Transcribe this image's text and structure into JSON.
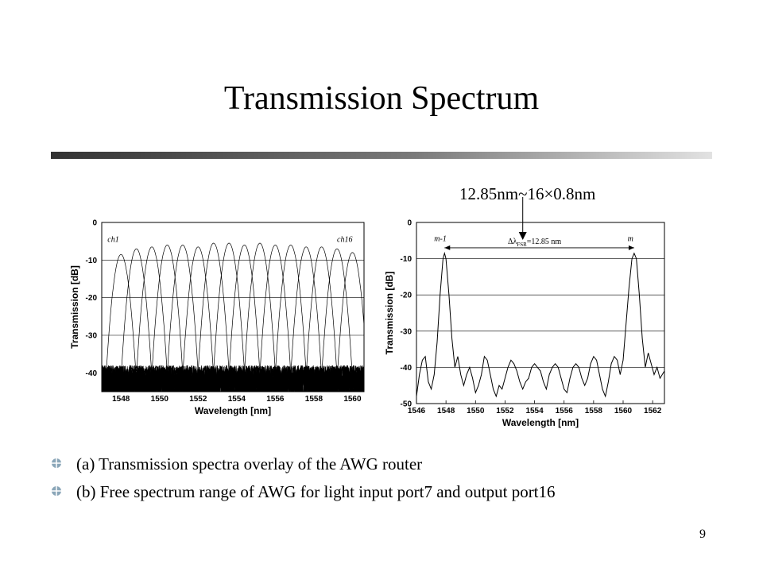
{
  "slide": {
    "title": "Transmission Spectrum",
    "annotation": "12.85nm~16×0.8nm",
    "bullets": [
      "(a) Transmission spectra overlay of the AWG router",
      "(b) Free spectrum range of AWG for light input port7 and output port16"
    ],
    "page_number": "9",
    "colors": {
      "rule_dark": "#3a3a3a",
      "rule_light": "#d6d6d6",
      "bullet": "#8aa6b8",
      "ink": "#000000"
    },
    "icons": {
      "bullet": "cross-diamond-icon"
    }
  },
  "chart_data": [
    {
      "type": "line",
      "id": "a",
      "xlabel": "Wavelength [nm]",
      "ylabel": "Transmission [dB]",
      "xlim": [
        1547.0,
        1560.6
      ],
      "ylim": [
        -45,
        0
      ],
      "xticks": [
        1548,
        1550,
        1552,
        1554,
        1556,
        1558,
        1560
      ],
      "yticks": [
        0,
        -10,
        -20,
        -30,
        -40
      ],
      "grid": "horizontal",
      "labels": [
        {
          "text": "ch1",
          "x": 1547.3,
          "y": -4.5
        },
        {
          "text": "ch16",
          "x": 1559.2,
          "y": -4.5
        }
      ],
      "channel_peaks": [
        {
          "x": 1548.0,
          "y": -8.5
        },
        {
          "x": 1548.8,
          "y": -7.0
        },
        {
          "x": 1549.6,
          "y": -6.5
        },
        {
          "x": 1550.4,
          "y": -6.0
        },
        {
          "x": 1551.2,
          "y": -6.0
        },
        {
          "x": 1552.0,
          "y": -6.5
        },
        {
          "x": 1552.8,
          "y": -5.5
        },
        {
          "x": 1553.6,
          "y": -5.5
        },
        {
          "x": 1554.4,
          "y": -6.0
        },
        {
          "x": 1555.2,
          "y": -5.5
        },
        {
          "x": 1556.0,
          "y": -6.0
        },
        {
          "x": 1556.8,
          "y": -6.0
        },
        {
          "x": 1557.6,
          "y": -6.5
        },
        {
          "x": 1558.4,
          "y": -6.5
        },
        {
          "x": 1559.2,
          "y": -7.0
        },
        {
          "x": 1560.0,
          "y": -8.0
        }
      ],
      "peak_fwhm_nm": 0.45,
      "noise_floor_db": [
        -47,
        -38
      ]
    },
    {
      "type": "line",
      "id": "b",
      "xlabel": "Wavelength [nm]",
      "ylabel": "Transmission [dB]",
      "xlim": [
        1546,
        1562.8
      ],
      "ylim": [
        -50,
        0
      ],
      "xticks": [
        1546,
        1548,
        1550,
        1552,
        1554,
        1556,
        1558,
        1560,
        1562
      ],
      "yticks": [
        0,
        -10,
        -20,
        -30,
        -40,
        -50
      ],
      "grid": "horizontal",
      "labels": [
        {
          "text": "m-1",
          "x": 1547.2,
          "y": -4.5
        },
        {
          "text": "m",
          "x": 1560.3,
          "y": -4.5
        }
      ],
      "fsr_label": "Δλ_FSR=12.85 nm",
      "fsr": {
        "from": 1547.9,
        "to": 1560.75,
        "y": -7
      },
      "peaks": [
        {
          "x": 1547.9,
          "y": -8.5
        },
        {
          "x": 1560.75,
          "y": -8.5
        }
      ],
      "points": [
        [
          1546.0,
          -48
        ],
        [
          1546.2,
          -42
        ],
        [
          1546.4,
          -38
        ],
        [
          1546.6,
          -37
        ],
        [
          1546.8,
          -44
        ],
        [
          1547.0,
          -46
        ],
        [
          1547.2,
          -42
        ],
        [
          1547.4,
          -33
        ],
        [
          1547.6,
          -20
        ],
        [
          1547.8,
          -10
        ],
        [
          1547.9,
          -8.5
        ],
        [
          1548.0,
          -10
        ],
        [
          1548.2,
          -20
        ],
        [
          1548.4,
          -32
        ],
        [
          1548.6,
          -40
        ],
        [
          1548.8,
          -37
        ],
        [
          1549.0,
          -42
        ],
        [
          1549.2,
          -45
        ],
        [
          1549.4,
          -42
        ],
        [
          1549.6,
          -40
        ],
        [
          1549.8,
          -43
        ],
        [
          1550.0,
          -47
        ],
        [
          1550.2,
          -45
        ],
        [
          1550.4,
          -42
        ],
        [
          1550.6,
          -37
        ],
        [
          1550.8,
          -38
        ],
        [
          1551.0,
          -42
        ],
        [
          1551.2,
          -46
        ],
        [
          1551.4,
          -48
        ],
        [
          1551.6,
          -45
        ],
        [
          1551.8,
          -46
        ],
        [
          1552.0,
          -43
        ],
        [
          1552.2,
          -40
        ],
        [
          1552.4,
          -38
        ],
        [
          1552.6,
          -39
        ],
        [
          1552.8,
          -41
        ],
        [
          1553.0,
          -44
        ],
        [
          1553.2,
          -46
        ],
        [
          1553.4,
          -44
        ],
        [
          1553.6,
          -43
        ],
        [
          1553.8,
          -40
        ],
        [
          1554.0,
          -39
        ],
        [
          1554.2,
          -40
        ],
        [
          1554.4,
          -41
        ],
        [
          1554.6,
          -44
        ],
        [
          1554.8,
          -46
        ],
        [
          1555.0,
          -42
        ],
        [
          1555.2,
          -40
        ],
        [
          1555.4,
          -39
        ],
        [
          1555.6,
          -40
        ],
        [
          1555.8,
          -43
        ],
        [
          1556.0,
          -46
        ],
        [
          1556.2,
          -47
        ],
        [
          1556.4,
          -43
        ],
        [
          1556.6,
          -40
        ],
        [
          1556.8,
          -39
        ],
        [
          1557.0,
          -40
        ],
        [
          1557.2,
          -43
        ],
        [
          1557.4,
          -45
        ],
        [
          1557.6,
          -43
        ],
        [
          1557.8,
          -39
        ],
        [
          1558.0,
          -37
        ],
        [
          1558.2,
          -38
        ],
        [
          1558.4,
          -42
        ],
        [
          1558.6,
          -46
        ],
        [
          1558.8,
          -48
        ],
        [
          1559.0,
          -44
        ],
        [
          1559.2,
          -39
        ],
        [
          1559.4,
          -37
        ],
        [
          1559.6,
          -38
        ],
        [
          1559.8,
          -42
        ],
        [
          1560.0,
          -38
        ],
        [
          1560.2,
          -28
        ],
        [
          1560.4,
          -18
        ],
        [
          1560.6,
          -10
        ],
        [
          1560.75,
          -8.5
        ],
        [
          1560.9,
          -10
        ],
        [
          1561.1,
          -20
        ],
        [
          1561.3,
          -32
        ],
        [
          1561.5,
          -40
        ],
        [
          1561.7,
          -36
        ],
        [
          1561.9,
          -39
        ],
        [
          1562.1,
          -42
        ],
        [
          1562.3,
          -40
        ],
        [
          1562.5,
          -43
        ],
        [
          1562.8,
          -41
        ]
      ]
    }
  ]
}
